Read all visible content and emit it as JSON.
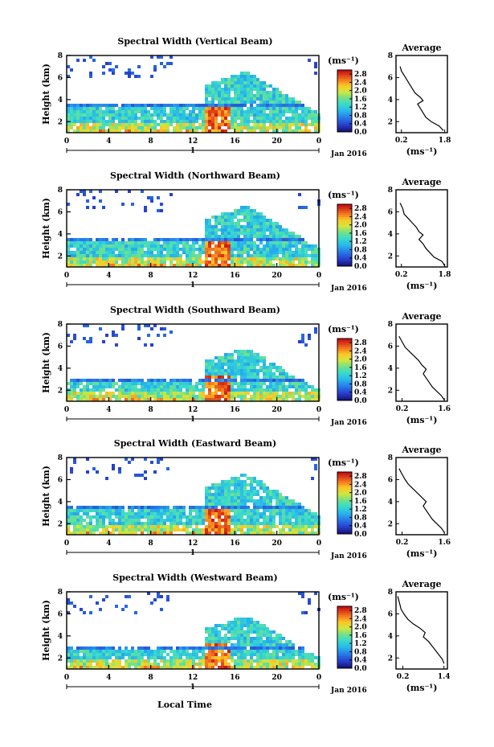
{
  "figure": {
    "date_label": "Jan 2016",
    "day_label": "1",
    "xlabel": "Local Time",
    "ylabel": "Height (km)",
    "unit_label": "(ms⁻¹)",
    "average_title": "Average"
  },
  "chart_data": [
    {
      "type": "heatmap",
      "title": "Spectral Width (Vertical Beam)",
      "x_ticks": [
        "0",
        "4",
        "8",
        "12",
        "16",
        "20",
        "0"
      ],
      "y_ticks": [
        "2",
        "4",
        "6",
        "8"
      ],
      "xlim": [
        0,
        24
      ],
      "ylim": [
        1,
        8
      ],
      "colorbar_ticks": [
        "0.0",
        "0.4",
        "0.8",
        "1.2",
        "1.6",
        "2.0",
        "2.4",
        "2.8"
      ],
      "colorbar_range": [
        0,
        3.0
      ],
      "average_profile": {
        "x_ticks": [
          "0.2",
          "1.8"
        ],
        "xlim": [
          0,
          1.9
        ],
        "y_ticks": [
          "2",
          "4",
          "6",
          "8"
        ],
        "ylim": [
          1,
          8
        ],
        "points": [
          [
            0.15,
            7.0
          ],
          [
            0.2,
            6.6
          ],
          [
            0.3,
            6.2
          ],
          [
            0.4,
            5.8
          ],
          [
            0.5,
            5.4
          ],
          [
            0.6,
            5.0
          ],
          [
            0.7,
            4.6
          ],
          [
            0.9,
            4.2
          ],
          [
            1.0,
            3.9
          ],
          [
            0.8,
            3.6
          ],
          [
            0.9,
            3.2
          ],
          [
            1.0,
            2.8
          ],
          [
            1.1,
            2.4
          ],
          [
            1.3,
            2.0
          ],
          [
            1.6,
            1.6
          ],
          [
            1.75,
            1.2
          ]
        ]
      }
    },
    {
      "type": "heatmap",
      "title": "Spectral Width (Northward Beam)",
      "x_ticks": [
        "0",
        "4",
        "8",
        "12",
        "16",
        "20",
        "0"
      ],
      "y_ticks": [
        "2",
        "4",
        "6",
        "8"
      ],
      "xlim": [
        0,
        24
      ],
      "ylim": [
        1,
        8
      ],
      "colorbar_ticks": [
        "0.0",
        "0.4",
        "0.8",
        "1.2",
        "1.6",
        "2.0",
        "2.4",
        "2.8"
      ],
      "colorbar_range": [
        0,
        3.0
      ],
      "average_profile": {
        "x_ticks": [
          "0.2",
          "1.8"
        ],
        "xlim": [
          0,
          1.9
        ],
        "y_ticks": [
          "2",
          "4",
          "6",
          "8"
        ],
        "ylim": [
          1,
          8
        ],
        "points": [
          [
            0.15,
            6.8
          ],
          [
            0.25,
            6.3
          ],
          [
            0.3,
            5.8
          ],
          [
            0.45,
            5.4
          ],
          [
            0.6,
            5.0
          ],
          [
            0.75,
            4.6
          ],
          [
            0.85,
            4.2
          ],
          [
            1.0,
            3.9
          ],
          [
            0.85,
            3.5
          ],
          [
            1.0,
            3.1
          ],
          [
            1.1,
            2.7
          ],
          [
            1.25,
            2.3
          ],
          [
            1.4,
            1.9
          ],
          [
            1.7,
            1.5
          ],
          [
            1.8,
            1.1
          ]
        ]
      }
    },
    {
      "type": "heatmap",
      "title": "Spectral Width (Southward Beam)",
      "x_ticks": [
        "0",
        "4",
        "8",
        "12",
        "16",
        "20",
        "0"
      ],
      "y_ticks": [
        "2",
        "4",
        "6",
        "8"
      ],
      "xlim": [
        0,
        24
      ],
      "ylim": [
        1,
        8
      ],
      "colorbar_ticks": [
        "0.0",
        "0.4",
        "0.8",
        "1.2",
        "1.6",
        "2.0",
        "2.4",
        "2.8"
      ],
      "colorbar_range": [
        0,
        3.0
      ],
      "average_profile": {
        "x_ticks": [
          "0.2",
          "1.6"
        ],
        "xlim": [
          0,
          1.7
        ],
        "y_ticks": [
          "2",
          "4",
          "6",
          "8"
        ],
        "ylim": [
          1,
          8
        ],
        "points": [
          [
            0.1,
            6.9
          ],
          [
            0.2,
            6.4
          ],
          [
            0.3,
            5.9
          ],
          [
            0.45,
            5.5
          ],
          [
            0.6,
            5.1
          ],
          [
            0.75,
            4.7
          ],
          [
            0.85,
            4.3
          ],
          [
            1.0,
            3.9
          ],
          [
            0.9,
            3.5
          ],
          [
            1.0,
            3.1
          ],
          [
            1.1,
            2.7
          ],
          [
            1.2,
            2.3
          ],
          [
            1.35,
            1.9
          ],
          [
            1.5,
            1.5
          ],
          [
            1.6,
            1.1
          ]
        ]
      }
    },
    {
      "type": "heatmap",
      "title": "Spectral Width (Eastward Beam)",
      "x_ticks": [
        "0",
        "4",
        "8",
        "12",
        "16",
        "20",
        "0"
      ],
      "y_ticks": [
        "2",
        "4",
        "6",
        "8"
      ],
      "xlim": [
        0,
        24
      ],
      "ylim": [
        1,
        8
      ],
      "colorbar_ticks": [
        "0.0",
        "0.4",
        "0.8",
        "1.2",
        "1.6",
        "2.0",
        "2.4",
        "2.8"
      ],
      "colorbar_range": [
        0,
        3.0
      ],
      "average_profile": {
        "x_ticks": [
          "0.2",
          "1.6"
        ],
        "xlim": [
          0,
          1.7
        ],
        "y_ticks": [
          "2",
          "4",
          "6",
          "8"
        ],
        "ylim": [
          1,
          8
        ],
        "points": [
          [
            0.1,
            7.0
          ],
          [
            0.2,
            6.5
          ],
          [
            0.3,
            6.0
          ],
          [
            0.4,
            5.6
          ],
          [
            0.55,
            5.2
          ],
          [
            0.7,
            4.8
          ],
          [
            0.85,
            4.4
          ],
          [
            1.0,
            4.0
          ],
          [
            0.9,
            3.6
          ],
          [
            1.0,
            3.2
          ],
          [
            1.1,
            2.8
          ],
          [
            1.2,
            2.4
          ],
          [
            1.35,
            2.0
          ],
          [
            1.5,
            1.6
          ],
          [
            1.6,
            1.2
          ]
        ]
      }
    },
    {
      "type": "heatmap",
      "title": "Spectral Width (Westward Beam)",
      "x_ticks": [
        "0",
        "4",
        "8",
        "12",
        "16",
        "20",
        "0"
      ],
      "y_ticks": [
        "2",
        "4",
        "6",
        "8"
      ],
      "xlim": [
        0,
        24
      ],
      "ylim": [
        1,
        8
      ],
      "colorbar_ticks": [
        "0.0",
        "0.4",
        "0.8",
        "1.2",
        "1.6",
        "2.0",
        "2.4",
        "2.8"
      ],
      "colorbar_range": [
        0,
        3.0
      ],
      "average_profile": {
        "x_ticks": [
          "0.2",
          "1.4"
        ],
        "xlim": [
          0,
          1.5
        ],
        "y_ticks": [
          "2",
          "4",
          "6",
          "8"
        ],
        "ylim": [
          1,
          8
        ],
        "points": [
          [
            0.05,
            7.6
          ],
          [
            0.1,
            7.0
          ],
          [
            0.15,
            6.4
          ],
          [
            0.25,
            5.9
          ],
          [
            0.35,
            5.5
          ],
          [
            0.5,
            5.1
          ],
          [
            0.7,
            4.7
          ],
          [
            0.85,
            4.3
          ],
          [
            0.8,
            3.9
          ],
          [
            0.95,
            3.5
          ],
          [
            1.05,
            3.1
          ],
          [
            1.15,
            2.7
          ],
          [
            1.25,
            2.3
          ],
          [
            1.35,
            1.9
          ],
          [
            1.4,
            1.5
          ]
        ]
      }
    }
  ]
}
